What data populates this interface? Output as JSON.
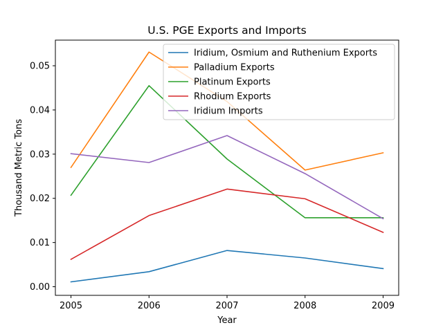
{
  "chart_data": {
    "type": "line",
    "title": "U.S. PGE Exports and Imports",
    "xlabel": "Year",
    "ylabel": "Thousand Metric Tons",
    "x": [
      2005,
      2006,
      2007,
      2008,
      2009
    ],
    "xlim": [
      2004.8,
      2009.2
    ],
    "ylim": [
      -0.00195,
      0.0558
    ],
    "yticks": [
      0.0,
      0.01,
      0.02,
      0.03,
      0.04,
      0.05
    ],
    "ytick_labels": [
      "0.00",
      "0.01",
      "0.02",
      "0.03",
      "0.04",
      "0.05"
    ],
    "grid": false,
    "legend_position": "top-right",
    "series": [
      {
        "name": "Iridium, Osmium and Ruthenium Exports",
        "color": "#1f77b4",
        "values": [
          0.0011,
          0.0034,
          0.0082,
          0.0065,
          0.0041
        ]
      },
      {
        "name": "Palladium Exports",
        "color": "#ff7f0e",
        "values": [
          0.027,
          0.0531,
          0.0419,
          0.0264,
          0.0303
        ]
      },
      {
        "name": "Platinum Exports",
        "color": "#2ca02c",
        "values": [
          0.0207,
          0.0455,
          0.0289,
          0.0156,
          0.0156
        ]
      },
      {
        "name": "Rhodium Exports",
        "color": "#d62728",
        "values": [
          0.0062,
          0.0161,
          0.0221,
          0.0199,
          0.0123
        ]
      },
      {
        "name": "Iridium Imports",
        "color": "#9467bd",
        "values": [
          0.0301,
          0.0281,
          0.0342,
          0.0256,
          0.0154
        ]
      }
    ]
  }
}
